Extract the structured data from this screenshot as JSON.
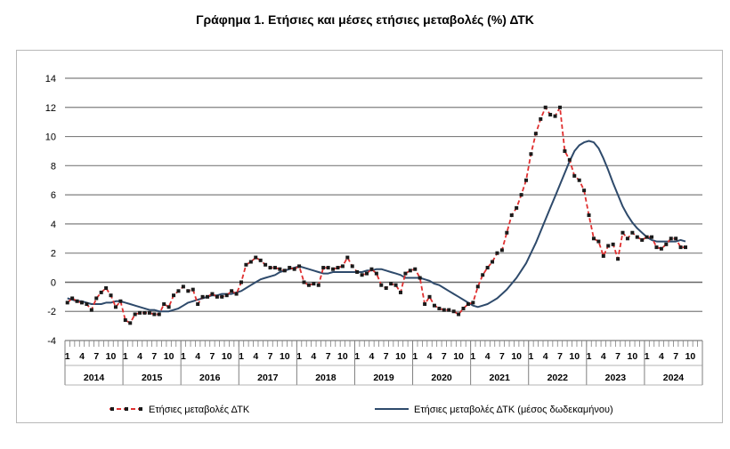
{
  "chart_data": {
    "type": "line",
    "title": "Γράφημα 1. Ετήσιες και μέσες ετήσιες μεταβολές (%) ΔΤΚ",
    "ylim": [
      -4,
      14
    ],
    "yticks": [
      "14",
      "12",
      "10",
      "8",
      "6",
      "4",
      "2",
      "0",
      "-2",
      "-4"
    ],
    "month_ticks": [
      "1",
      "4",
      "7",
      "10"
    ],
    "years": [
      "2014",
      "2015",
      "2016",
      "2017",
      "2018",
      "2019",
      "2020",
      "2021",
      "2022",
      "2023",
      "2024"
    ],
    "grid": true,
    "legend_position": "bottom",
    "x_start": "2014-01",
    "x_end": "2024-12",
    "series": [
      {
        "name": "Ετήσιες μεταβολές ΔΤΚ",
        "color": "#e03030",
        "style": "dashed-with-markers",
        "values": [
          -1.4,
          -1.1,
          -1.3,
          -1.4,
          -1.5,
          -1.9,
          -1.1,
          -0.7,
          -0.4,
          -0.9,
          -1.7,
          -1.3,
          -2.6,
          -2.8,
          -2.2,
          -2.1,
          -2.1,
          -2.1,
          -2.2,
          -2.2,
          -1.5,
          -1.7,
          -0.9,
          -0.6,
          -0.3,
          -0.6,
          -0.5,
          -1.5,
          -1.0,
          -1.0,
          -0.8,
          -1.0,
          -1.0,
          -0.9,
          -0.6,
          -0.8,
          0.0,
          1.2,
          1.4,
          1.7,
          1.5,
          1.2,
          1.0,
          1.0,
          0.9,
          0.8,
          1.0,
          0.9,
          1.1,
          0.0,
          -0.2,
          -0.1,
          -0.2,
          1.0,
          1.0,
          0.9,
          1.0,
          1.1,
          1.7,
          1.1,
          0.7,
          0.5,
          0.6,
          0.9,
          0.6,
          -0.2,
          -0.4,
          -0.1,
          -0.2,
          -0.7,
          0.6,
          0.8,
          0.9,
          0.3,
          -1.5,
          -1.0,
          -1.6,
          -1.8,
          -1.9,
          -1.9,
          -2.0,
          -2.2,
          -1.8,
          -1.5,
          -1.4,
          -0.3,
          0.5,
          1.0,
          1.4,
          2.0,
          2.2,
          3.4,
          4.6,
          5.1,
          6.0,
          7.0,
          8.8,
          10.2,
          11.2,
          12.0,
          11.5,
          11.4,
          12.0,
          9.0,
          8.4,
          7.3,
          7.0,
          6.3,
          4.6,
          3.0,
          2.8,
          1.8,
          2.5,
          2.6,
          1.6,
          3.4,
          3.0,
          3.4,
          3.1,
          2.9,
          3.1,
          3.1,
          2.4,
          2.3,
          2.6,
          3.0,
          3.0,
          2.4,
          2.4
        ]
      },
      {
        "name": "Ετήσιες μεταβολές ΔΤΚ (μέσος δωδεκαμήνου)",
        "color": "#2e4a6b",
        "style": "solid",
        "values": [
          -1.1,
          -1.2,
          -1.3,
          -1.3,
          -1.4,
          -1.5,
          -1.5,
          -1.5,
          -1.4,
          -1.4,
          -1.3,
          -1.3,
          -1.4,
          -1.5,
          -1.6,
          -1.7,
          -1.8,
          -1.9,
          -1.9,
          -2.0,
          -2.0,
          -2.0,
          -1.9,
          -1.8,
          -1.6,
          -1.4,
          -1.3,
          -1.2,
          -1.1,
          -1.0,
          -0.9,
          -0.9,
          -0.8,
          -0.8,
          -0.8,
          -0.7,
          -0.6,
          -0.4,
          -0.2,
          0.0,
          0.2,
          0.3,
          0.4,
          0.5,
          0.7,
          0.8,
          0.9,
          1.0,
          1.1,
          1.0,
          0.9,
          0.8,
          0.7,
          0.6,
          0.6,
          0.7,
          0.7,
          0.7,
          0.7,
          0.7,
          0.7,
          0.7,
          0.8,
          0.8,
          0.9,
          0.9,
          0.8,
          0.7,
          0.6,
          0.5,
          0.3,
          0.3,
          0.3,
          0.3,
          0.2,
          0.1,
          -0.1,
          -0.2,
          -0.4,
          -0.6,
          -0.8,
          -1.0,
          -1.2,
          -1.4,
          -1.6,
          -1.7,
          -1.6,
          -1.5,
          -1.3,
          -1.1,
          -0.8,
          -0.5,
          -0.1,
          0.3,
          0.8,
          1.3,
          2.0,
          2.7,
          3.5,
          4.3,
          5.1,
          5.9,
          6.7,
          7.5,
          8.3,
          9.0,
          9.4,
          9.6,
          9.7,
          9.6,
          9.2,
          8.5,
          7.7,
          6.8,
          6.0,
          5.2,
          4.6,
          4.1,
          3.7,
          3.4,
          3.1,
          2.9,
          2.8,
          2.8,
          2.8,
          2.8,
          2.8,
          2.9,
          2.8
        ]
      }
    ]
  }
}
